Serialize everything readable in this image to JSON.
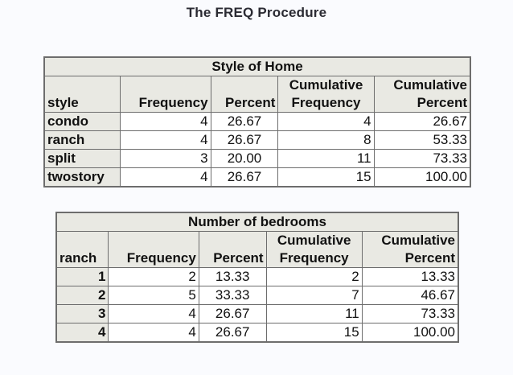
{
  "procedure_title": "The FREQ Procedure",
  "tables": [
    {
      "caption": "Style of Home",
      "headers": {
        "var": "style",
        "frequency": "Frequency",
        "percent": "Percent",
        "cum_freq_1": "Cumulative",
        "cum_freq_2": "Frequency",
        "cum_pct_1": "Cumulative",
        "cum_pct_2": "Percent"
      },
      "rows": [
        {
          "label": "condo",
          "frequency": "4",
          "percent": "26.67",
          "cum_freq": "4",
          "cum_pct": "26.67"
        },
        {
          "label": "ranch",
          "frequency": "4",
          "percent": "26.67",
          "cum_freq": "8",
          "cum_pct": "53.33"
        },
        {
          "label": "split",
          "frequency": "3",
          "percent": "20.00",
          "cum_freq": "11",
          "cum_pct": "73.33"
        },
        {
          "label": "twostory",
          "frequency": "4",
          "percent": "26.67",
          "cum_freq": "15",
          "cum_pct": "100.00"
        }
      ]
    },
    {
      "caption": "Number of bedrooms",
      "headers": {
        "var": "ranch",
        "frequency": "Frequency",
        "percent": "Percent",
        "cum_freq_1": "Cumulative",
        "cum_freq_2": "Frequency",
        "cum_pct_1": "Cumulative",
        "cum_pct_2": "Percent"
      },
      "rows": [
        {
          "label": "1",
          "frequency": "2",
          "percent": "13.33",
          "cum_freq": "2",
          "cum_pct": "13.33"
        },
        {
          "label": "2",
          "frequency": "5",
          "percent": "33.33",
          "cum_freq": "7",
          "cum_pct": "46.67"
        },
        {
          "label": "3",
          "frequency": "4",
          "percent": "26.67",
          "cum_freq": "11",
          "cum_pct": "73.33"
        },
        {
          "label": "4",
          "frequency": "4",
          "percent": "26.67",
          "cum_freq": "15",
          "cum_pct": "100.00"
        }
      ]
    }
  ]
}
